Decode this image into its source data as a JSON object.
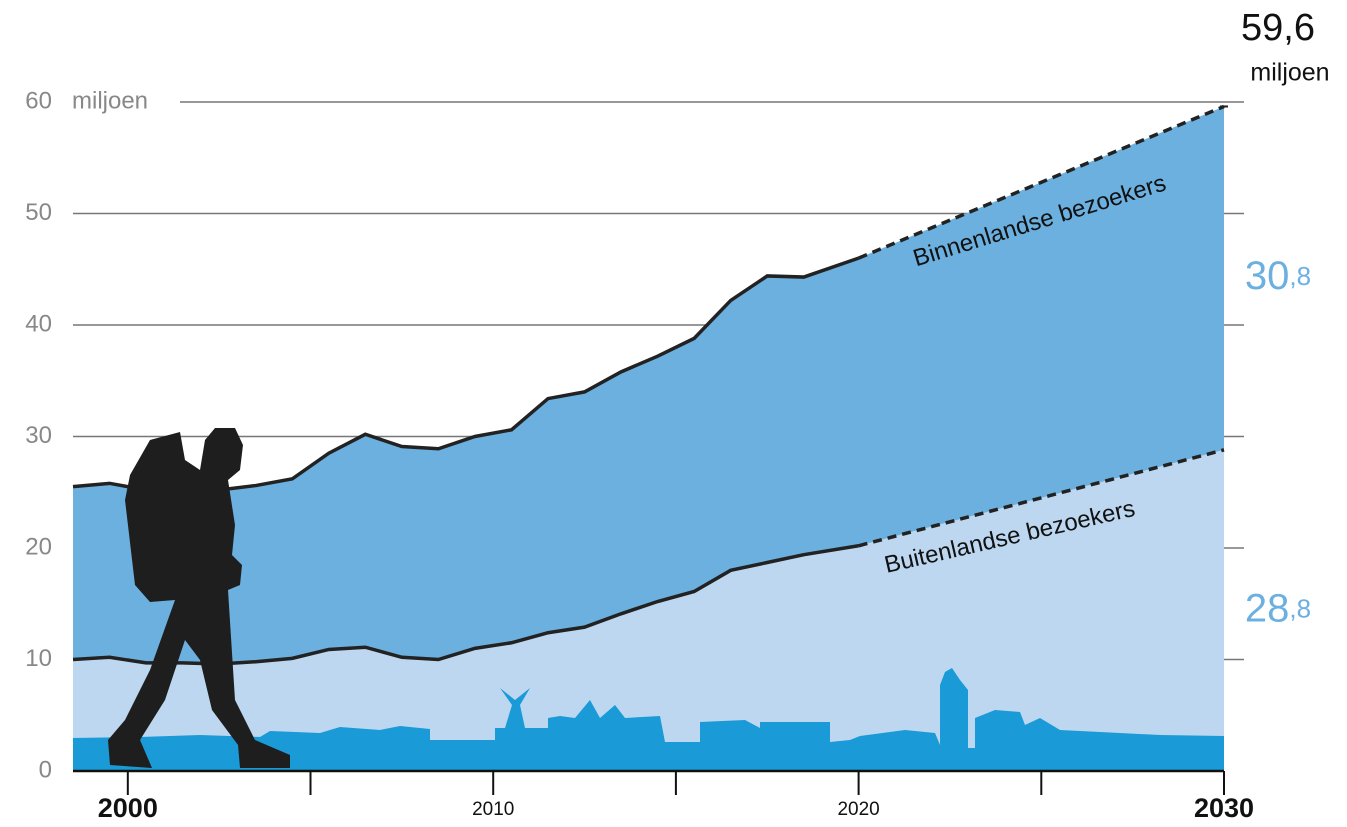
{
  "chart_data": {
    "type": "stacked_area",
    "y_unit": "miljoen",
    "x": [
      1998.5,
      1999.5,
      2000.5,
      2001.5,
      2002.5,
      2003.5,
      2004.5,
      2005.5,
      2006.5,
      2007.5,
      2008.5,
      2009.5,
      2010.5,
      2011.5,
      2012.5,
      2013.5,
      2014.5,
      2015.5,
      2016.5,
      2017.5,
      2018.5,
      2020,
      2030
    ],
    "series": [
      {
        "name": "Buitenlandse bezoekers",
        "color": "#bcd7ef",
        "values": [
          10.0,
          10.2,
          9.7,
          9.7,
          9.6,
          9.8,
          10.1,
          10.9,
          11.1,
          10.2,
          10.0,
          11.0,
          11.5,
          12.4,
          12.9,
          14.1,
          15.2,
          16.1,
          18.0,
          18.7,
          19.4,
          20.2,
          28.8
        ],
        "value_labels": [
          null,
          null,
          null,
          null,
          null,
          null,
          null,
          null,
          null,
          null,
          null,
          null,
          null,
          null,
          null,
          null,
          null,
          null,
          null,
          null,
          null,
          null,
          "28,8"
        ]
      },
      {
        "name": "Binnenlandse bezoekers",
        "color": "#6cb0e0",
        "values": [
          15.5,
          15.6,
          15.5,
          15.1,
          15.6,
          15.8,
          16.1,
          17.6,
          19.1,
          18.9,
          18.9,
          19.0,
          19.1,
          21.0,
          21.1,
          21.7,
          22.0,
          22.7,
          24.2,
          25.7,
          24.9,
          25.8,
          30.8
        ],
        "value_labels": [
          null,
          null,
          null,
          null,
          null,
          null,
          null,
          null,
          null,
          null,
          null,
          null,
          null,
          null,
          null,
          null,
          null,
          null,
          null,
          null,
          null,
          null,
          "30,8"
        ]
      }
    ],
    "total": 59.6,
    "total_label": "59,6",
    "total_unit": "miljoen",
    "dashed_from": 2020,
    "xlim": [
      1998.5,
      2030
    ],
    "xticks": [
      2000,
      2010,
      2020,
      2030
    ],
    "xminor_ticks": [
      2005,
      2015,
      2025
    ],
    "ylim": [
      0,
      60
    ],
    "yticks": [
      0,
      10,
      20,
      30,
      40,
      50,
      60
    ],
    "label_color": "#6cb0e0",
    "line_color": "#222222",
    "grid": true
  }
}
